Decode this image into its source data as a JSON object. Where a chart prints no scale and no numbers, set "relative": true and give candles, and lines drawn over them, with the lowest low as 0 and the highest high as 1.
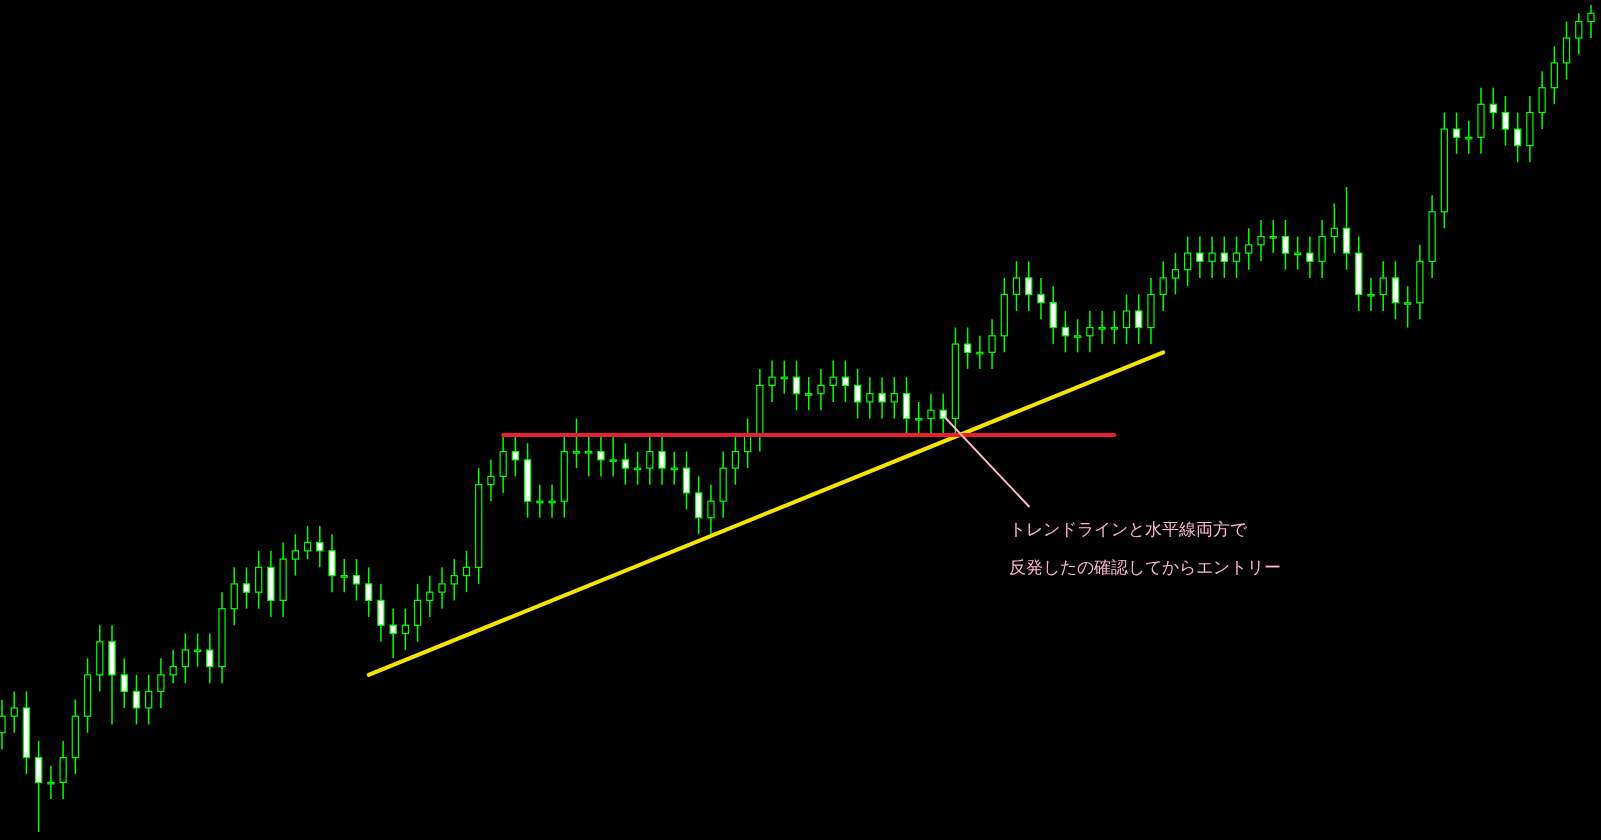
{
  "chart_data": {
    "type": "candlestick",
    "relative": true,
    "categories": [
      null,
      null,
      null,
      null,
      null,
      null,
      null,
      null,
      null,
      null,
      null,
      null,
      null,
      null,
      null,
      null,
      null,
      null,
      null,
      null,
      null,
      null,
      null,
      null,
      null,
      null,
      null,
      null,
      null,
      null,
      null,
      null,
      null,
      null,
      null,
      null,
      null,
      null,
      null,
      null,
      null,
      null,
      null,
      null,
      null,
      null,
      null,
      null,
      null,
      null,
      null,
      null,
      null,
      null,
      null,
      null,
      null,
      null,
      null,
      null,
      null,
      null,
      null,
      null,
      null,
      null,
      null,
      null,
      null,
      null,
      null,
      null,
      null,
      null,
      null,
      null,
      null,
      null,
      null,
      null,
      null,
      null,
      null,
      null,
      null,
      null,
      null,
      null,
      null,
      null,
      null,
      null,
      null,
      null,
      null,
      null,
      null,
      null,
      null,
      null,
      null,
      null,
      null,
      null,
      null,
      null,
      null,
      null,
      null,
      null,
      null,
      null,
      null,
      null,
      null,
      null,
      null,
      null,
      null,
      null,
      null,
      null,
      null,
      null,
      null,
      null,
      null,
      null,
      null,
      null,
      null
    ],
    "ohlc": [
      [
        0.12,
        0.16,
        0.1,
        0.14
      ],
      [
        0.14,
        0.17,
        0.12,
        0.15
      ],
      [
        0.15,
        0.17,
        0.07,
        0.09
      ],
      [
        0.09,
        0.11,
        0,
        0.06
      ],
      [
        0.06,
        0.08,
        0.04,
        0.06
      ],
      [
        0.06,
        0.11,
        0.04,
        0.09
      ],
      [
        0.09,
        0.16,
        0.07,
        0.14
      ],
      [
        0.14,
        0.21,
        0.12,
        0.19
      ],
      [
        0.19,
        0.25,
        0.17,
        0.23
      ],
      [
        0.23,
        0.25,
        0.13,
        0.19
      ],
      [
        0.19,
        0.21,
        0.15,
        0.17
      ],
      [
        0.17,
        0.19,
        0.13,
        0.15
      ],
      [
        0.15,
        0.19,
        0.13,
        0.17
      ],
      [
        0.17,
        0.21,
        0.15,
        0.19
      ],
      [
        0.19,
        0.22,
        0.18,
        0.2
      ],
      [
        0.2,
        0.24,
        0.18,
        0.22
      ],
      [
        0.22,
        0.24,
        0.2,
        0.22
      ],
      [
        0.22,
        0.24,
        0.18,
        0.2
      ],
      [
        0.2,
        0.29,
        0.18,
        0.27
      ],
      [
        0.27,
        0.32,
        0.25,
        0.3
      ],
      [
        0.3,
        0.32,
        0.27,
        0.29
      ],
      [
        0.29,
        0.34,
        0.27,
        0.32
      ],
      [
        0.32,
        0.34,
        0.26,
        0.28
      ],
      [
        0.28,
        0.35,
        0.26,
        0.33
      ],
      [
        0.33,
        0.36,
        0.31,
        0.34
      ],
      [
        0.34,
        0.37,
        0.33,
        0.35
      ],
      [
        0.35,
        0.37,
        0.32,
        0.34
      ],
      [
        0.34,
        0.36,
        0.29,
        0.31
      ],
      [
        0.31,
        0.33,
        0.29,
        0.31
      ],
      [
        0.31,
        0.33,
        0.28,
        0.3
      ],
      [
        0.3,
        0.32,
        0.26,
        0.28
      ],
      [
        0.28,
        0.3,
        0.23,
        0.25
      ],
      [
        0.25,
        0.27,
        0.21,
        0.24
      ],
      [
        0.24,
        0.27,
        0.22,
        0.25
      ],
      [
        0.25,
        0.3,
        0.23,
        0.28
      ],
      [
        0.28,
        0.31,
        0.26,
        0.29
      ],
      [
        0.29,
        0.32,
        0.27,
        0.3
      ],
      [
        0.3,
        0.33,
        0.28,
        0.31
      ],
      [
        0.31,
        0.34,
        0.29,
        0.32
      ],
      [
        0.32,
        0.44,
        0.3,
        0.42
      ],
      [
        0.42,
        0.45,
        0.4,
        0.43
      ],
      [
        0.43,
        0.48,
        0.41,
        0.46
      ],
      [
        0.46,
        0.48,
        0.43,
        0.45
      ],
      [
        0.45,
        0.47,
        0.38,
        0.4
      ],
      [
        0.4,
        0.42,
        0.38,
        0.4
      ],
      [
        0.4,
        0.42,
        0.38,
        0.4
      ],
      [
        0.4,
        0.48,
        0.38,
        0.46
      ],
      [
        0.46,
        0.5,
        0.44,
        0.46
      ],
      [
        0.46,
        0.48,
        0.43,
        0.46
      ],
      [
        0.46,
        0.48,
        0.43,
        0.45
      ],
      [
        0.45,
        0.48,
        0.43,
        0.45
      ],
      [
        0.45,
        0.47,
        0.42,
        0.44
      ],
      [
        0.44,
        0.46,
        0.42,
        0.44
      ],
      [
        0.44,
        0.48,
        0.42,
        0.46
      ],
      [
        0.46,
        0.48,
        0.42,
        0.44
      ],
      [
        0.44,
        0.46,
        0.42,
        0.44
      ],
      [
        0.44,
        0.46,
        0.39,
        0.41
      ],
      [
        0.41,
        0.43,
        0.36,
        0.38
      ],
      [
        0.38,
        0.42,
        0.36,
        0.4
      ],
      [
        0.4,
        0.46,
        0.38,
        0.44
      ],
      [
        0.44,
        0.48,
        0.42,
        0.46
      ],
      [
        0.46,
        0.5,
        0.44,
        0.48
      ],
      [
        0.48,
        0.56,
        0.46,
        0.54
      ],
      [
        0.54,
        0.57,
        0.52,
        0.55
      ],
      [
        0.55,
        0.57,
        0.53,
        0.55
      ],
      [
        0.55,
        0.57,
        0.51,
        0.53
      ],
      [
        0.53,
        0.55,
        0.51,
        0.53
      ],
      [
        0.53,
        0.56,
        0.51,
        0.54
      ],
      [
        0.54,
        0.57,
        0.52,
        0.55
      ],
      [
        0.55,
        0.57,
        0.52,
        0.54
      ],
      [
        0.54,
        0.56,
        0.5,
        0.52
      ],
      [
        0.52,
        0.55,
        0.5,
        0.53
      ],
      [
        0.53,
        0.55,
        0.5,
        0.52
      ],
      [
        0.52,
        0.55,
        0.5,
        0.53
      ],
      [
        0.53,
        0.55,
        0.48,
        0.5
      ],
      [
        0.5,
        0.52,
        0.48,
        0.5
      ],
      [
        0.5,
        0.53,
        0.48,
        0.51
      ],
      [
        0.51,
        0.53,
        0.48,
        0.5
      ],
      [
        0.5,
        0.61,
        0.48,
        0.59
      ],
      [
        0.59,
        0.61,
        0.56,
        0.58
      ],
      [
        0.58,
        0.6,
        0.56,
        0.58
      ],
      [
        0.58,
        0.62,
        0.56,
        0.6
      ],
      [
        0.6,
        0.67,
        0.58,
        0.65
      ],
      [
        0.65,
        0.69,
        0.63,
        0.67
      ],
      [
        0.67,
        0.69,
        0.63,
        0.65
      ],
      [
        0.65,
        0.67,
        0.62,
        0.64
      ],
      [
        0.64,
        0.66,
        0.59,
        0.61
      ],
      [
        0.61,
        0.63,
        0.58,
        0.6
      ],
      [
        0.6,
        0.62,
        0.58,
        0.6
      ],
      [
        0.6,
        0.63,
        0.58,
        0.61
      ],
      [
        0.61,
        0.63,
        0.59,
        0.61
      ],
      [
        0.61,
        0.63,
        0.59,
        0.61
      ],
      [
        0.61,
        0.65,
        0.59,
        0.63
      ],
      [
        0.63,
        0.65,
        0.59,
        0.61
      ],
      [
        0.61,
        0.67,
        0.59,
        0.65
      ],
      [
        0.65,
        0.69,
        0.63,
        0.67
      ],
      [
        0.67,
        0.7,
        0.65,
        0.68
      ],
      [
        0.68,
        0.72,
        0.66,
        0.7
      ],
      [
        0.7,
        0.72,
        0.67,
        0.69
      ],
      [
        0.69,
        0.72,
        0.67,
        0.7
      ],
      [
        0.7,
        0.72,
        0.67,
        0.69
      ],
      [
        0.69,
        0.72,
        0.67,
        0.7
      ],
      [
        0.7,
        0.73,
        0.68,
        0.71
      ],
      [
        0.71,
        0.74,
        0.69,
        0.72
      ],
      [
        0.72,
        0.74,
        0.7,
        0.72
      ],
      [
        0.72,
        0.74,
        0.68,
        0.7
      ],
      [
        0.7,
        0.72,
        0.68,
        0.7
      ],
      [
        0.7,
        0.72,
        0.67,
        0.69
      ],
      [
        0.69,
        0.74,
        0.67,
        0.72
      ],
      [
        0.72,
        0.76,
        0.7,
        0.73
      ],
      [
        0.73,
        0.78,
        0.68,
        0.7
      ],
      [
        0.7,
        0.72,
        0.63,
        0.65
      ],
      [
        0.65,
        0.67,
        0.63,
        0.65
      ],
      [
        0.65,
        0.69,
        0.63,
        0.67
      ],
      [
        0.67,
        0.69,
        0.62,
        0.64
      ],
      [
        0.64,
        0.66,
        0.61,
        0.64
      ],
      [
        0.64,
        0.71,
        0.62,
        0.69
      ],
      [
        0.69,
        0.77,
        0.67,
        0.75
      ],
      [
        0.75,
        0.87,
        0.73,
        0.85
      ],
      [
        0.85,
        0.87,
        0.82,
        0.84
      ],
      [
        0.84,
        0.86,
        0.82,
        0.84
      ],
      [
        0.84,
        0.9,
        0.82,
        0.88
      ],
      [
        0.88,
        0.9,
        0.85,
        0.87
      ],
      [
        0.87,
        0.89,
        0.83,
        0.85
      ],
      [
        0.85,
        0.87,
        0.81,
        0.83
      ],
      [
        0.83,
        0.89,
        0.81,
        0.87
      ],
      [
        0.87,
        0.92,
        0.85,
        0.9
      ],
      [
        0.9,
        0.95,
        0.88,
        0.93
      ],
      [
        0.93,
        0.98,
        0.91,
        0.96
      ],
      [
        0.96,
        0.99,
        0.94,
        0.98
      ],
      [
        0.98,
        1,
        0.96,
        0.99
      ]
    ],
    "series": [
      {
        "type": "line",
        "color": "#f5e400",
        "values": [
          null,
          null,
          null,
          null,
          null,
          null,
          null,
          null,
          null,
          null,
          null,
          null,
          null,
          null,
          null,
          null,
          null,
          null,
          null,
          null,
          null,
          null,
          null,
          null,
          null,
          null,
          null,
          null,
          null,
          null,
          0.19,
          null,
          null,
          null,
          null,
          null,
          null,
          null,
          null,
          null,
          null,
          null,
          null,
          null,
          null,
          null,
          null,
          null,
          null,
          null,
          null,
          null,
          null,
          null,
          null,
          null,
          null,
          null,
          null,
          null,
          null,
          null,
          null,
          null,
          null,
          null,
          null,
          null,
          null,
          null,
          null,
          null,
          null,
          null,
          null,
          null,
          null,
          null,
          null,
          null,
          null,
          null,
          null,
          null,
          null,
          null,
          null,
          null,
          null,
          null,
          null,
          null,
          null,
          null,
          null,
          0.58,
          null,
          null,
          null,
          null,
          null,
          null,
          null,
          null,
          null,
          null,
          null,
          null,
          null,
          null,
          null,
          null,
          null,
          null,
          null,
          null,
          null,
          null,
          null,
          null,
          null,
          null,
          null,
          null,
          null,
          null,
          null,
          null,
          null,
          null,
          null
        ]
      },
      {
        "type": "line",
        "color": "#e8202a",
        "values": [
          null,
          null,
          null,
          null,
          null,
          null,
          null,
          null,
          null,
          null,
          null,
          null,
          null,
          null,
          null,
          null,
          null,
          null,
          null,
          null,
          null,
          null,
          null,
          null,
          null,
          null,
          null,
          null,
          null,
          null,
          null,
          null,
          null,
          null,
          null,
          null,
          null,
          null,
          null,
          null,
          null,
          0.48,
          null,
          null,
          null,
          null,
          null,
          null,
          null,
          null,
          null,
          null,
          null,
          null,
          null,
          null,
          null,
          null,
          null,
          null,
          null,
          null,
          null,
          null,
          null,
          null,
          null,
          null,
          null,
          null,
          null,
          null,
          null,
          null,
          null,
          null,
          null,
          null,
          null,
          null,
          null,
          null,
          null,
          null,
          null,
          null,
          null,
          null,
          null,
          null,
          null,
          0.48,
          null,
          null,
          null,
          null,
          null,
          null,
          null,
          null,
          null,
          null,
          null,
          null,
          null,
          null,
          null,
          null,
          null,
          null,
          null,
          null,
          null,
          null,
          null,
          null,
          null,
          null,
          null,
          null,
          null,
          null,
          null,
          null,
          null,
          null,
          null,
          null,
          null,
          null,
          null
        ]
      }
    ],
    "annotations": [
      "トレンドラインと水平線両方で",
      "反発したの確認してからエントリー"
    ]
  }
}
